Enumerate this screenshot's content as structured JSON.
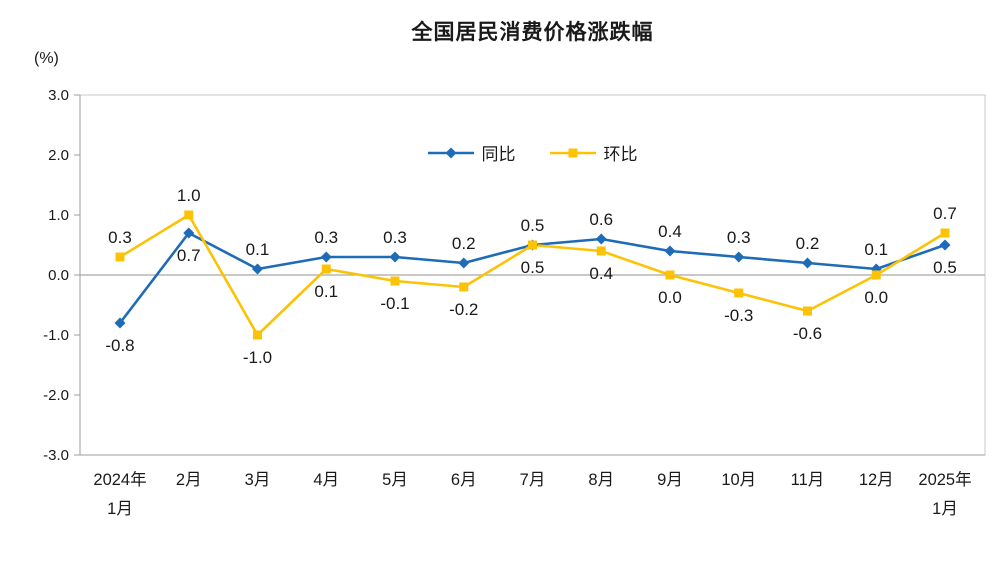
{
  "chart_data": {
    "type": "line",
    "title": "全国居民消费价格涨跌幅",
    "unit_label": "(%)",
    "categories": [
      "2024年1月",
      "2月",
      "3月",
      "4月",
      "5月",
      "6月",
      "7月",
      "8月",
      "9月",
      "10月",
      "11月",
      "12月",
      "2025年1月"
    ],
    "category_lines": [
      [
        "2024年",
        "1月"
      ],
      [
        "2月"
      ],
      [
        "3月"
      ],
      [
        "4月"
      ],
      [
        "5月"
      ],
      [
        "6月"
      ],
      [
        "7月"
      ],
      [
        "8月"
      ],
      [
        "9月"
      ],
      [
        "10月"
      ],
      [
        "11月"
      ],
      [
        "12月"
      ],
      [
        "2025年",
        "1月"
      ]
    ],
    "series": [
      {
        "name": "同比",
        "marker": "diamond",
        "color": "#1e6cb8",
        "values": [
          -0.8,
          0.7,
          0.1,
          0.3,
          0.3,
          0.2,
          0.5,
          0.6,
          0.4,
          0.3,
          0.2,
          0.1,
          0.5
        ]
      },
      {
        "name": "环比",
        "marker": "square",
        "color": "#fcc306",
        "values": [
          0.3,
          1.0,
          -1.0,
          0.1,
          -0.1,
          -0.2,
          0.5,
          0.4,
          0.0,
          -0.3,
          -0.6,
          0.0,
          0.7
        ]
      }
    ],
    "ylim": [
      -3.0,
      3.0
    ],
    "yticks": [
      3.0,
      2.0,
      1.0,
      0.0,
      -1.0,
      -2.0,
      -3.0
    ],
    "grid": false,
    "legend_position": "top-center",
    "colors": {
      "plot_border": "#c9c9c9",
      "axis": "#9e9e9e",
      "zero_line": "#a8a8a8",
      "text": "#1a1a1a"
    }
  }
}
